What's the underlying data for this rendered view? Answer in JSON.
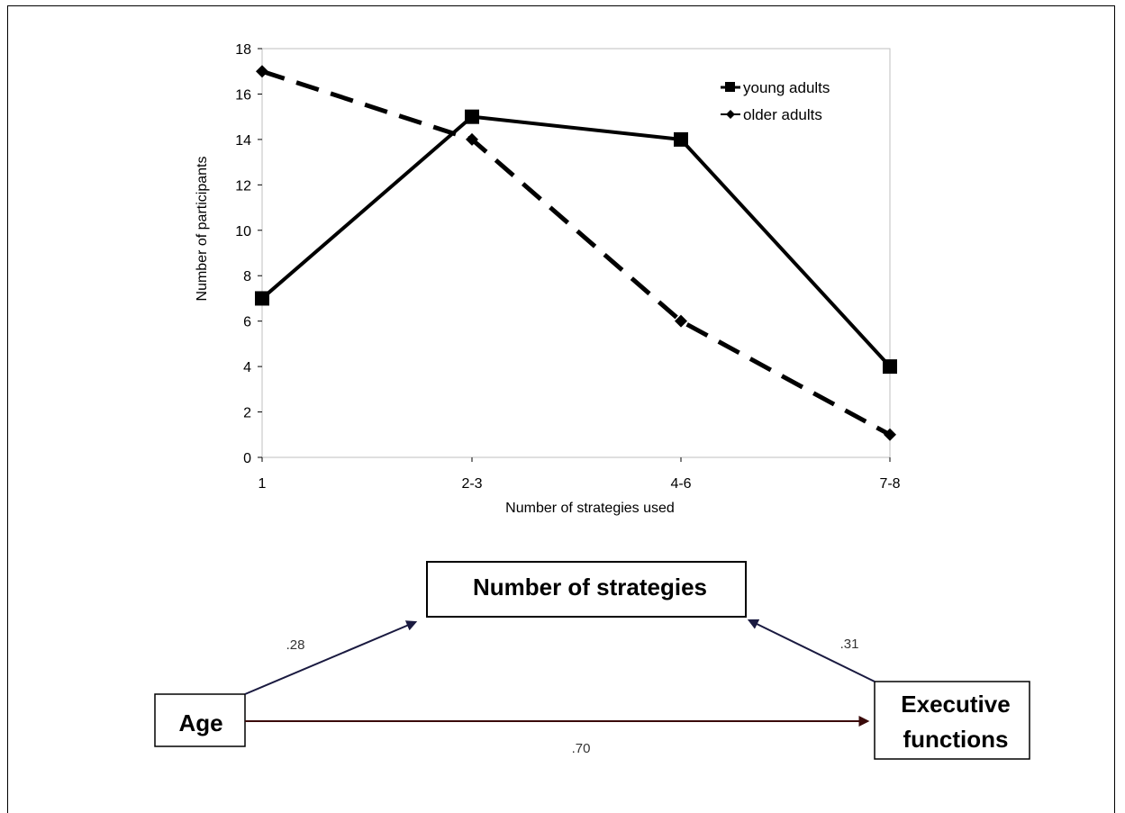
{
  "chart_data": {
    "type": "line",
    "categories": [
      "1",
      "2-3",
      "4-6",
      "7-8"
    ],
    "series": [
      {
        "name": "young adults",
        "values": [
          7,
          15,
          14,
          4
        ],
        "line": "solid",
        "marker": "square"
      },
      {
        "name": "older adults",
        "values": [
          17,
          14,
          6,
          1
        ],
        "line": "dashed",
        "marker": "diamond"
      }
    ],
    "xlabel": "Number of strategies used",
    "ylabel": "Number of participants",
    "ylim": [
      0,
      18
    ],
    "yticks": [
      0,
      2,
      4,
      6,
      8,
      10,
      12,
      14,
      16,
      18
    ],
    "legend_position": "top-right",
    "grid": false,
    "line_color": "#000000"
  },
  "diagram": {
    "nodes": {
      "strategies": "Number of strategies",
      "age": "Age",
      "executive": [
        "Executive",
        "functions"
      ]
    },
    "paths": {
      "age_to_strategies": ".28",
      "executive_to_strategies": ".31",
      "age_to_executive": ".70"
    },
    "colors": {
      "age_strategies_arrow": "#1a1a40",
      "executive_strategies_arrow": "#1a1a40",
      "age_executive_arrow": "#3a0a0a"
    }
  }
}
